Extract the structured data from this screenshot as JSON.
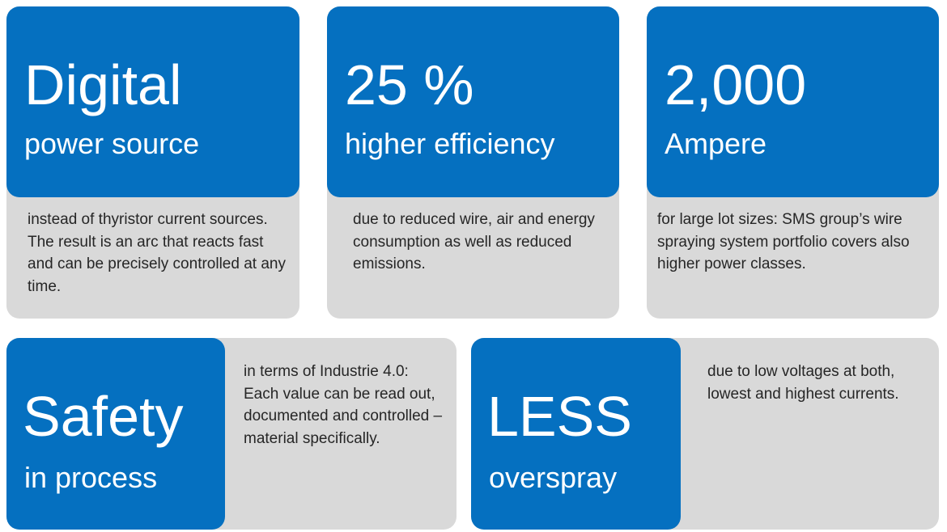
{
  "colors": {
    "accent": "#0570c0",
    "panel": "#d9d9d9"
  },
  "cards": [
    {
      "headline": "Digital",
      "subtitle": "power source",
      "text": "instead of thyristor current sources. The result is an arc that reacts fast and can be precisely controlled at any time."
    },
    {
      "headline": "25 %",
      "subtitle": "higher efficiency",
      "text": "due to reduced wire, air and energy consumption as well as reduced emissions."
    },
    {
      "headline": "2,000",
      "subtitle": "Ampere",
      "text": "for large lot sizes: SMS group’s wire spraying system portfolio covers also higher power classes."
    },
    {
      "headline": "Safety",
      "subtitle": "in process",
      "text": "in terms of Industrie 4.0: Each value can be read out, documented and controlled – material specifically."
    },
    {
      "headline": "LESS",
      "subtitle": "overspray",
      "text": "due to low voltages at both, lowest and highest currents."
    }
  ]
}
